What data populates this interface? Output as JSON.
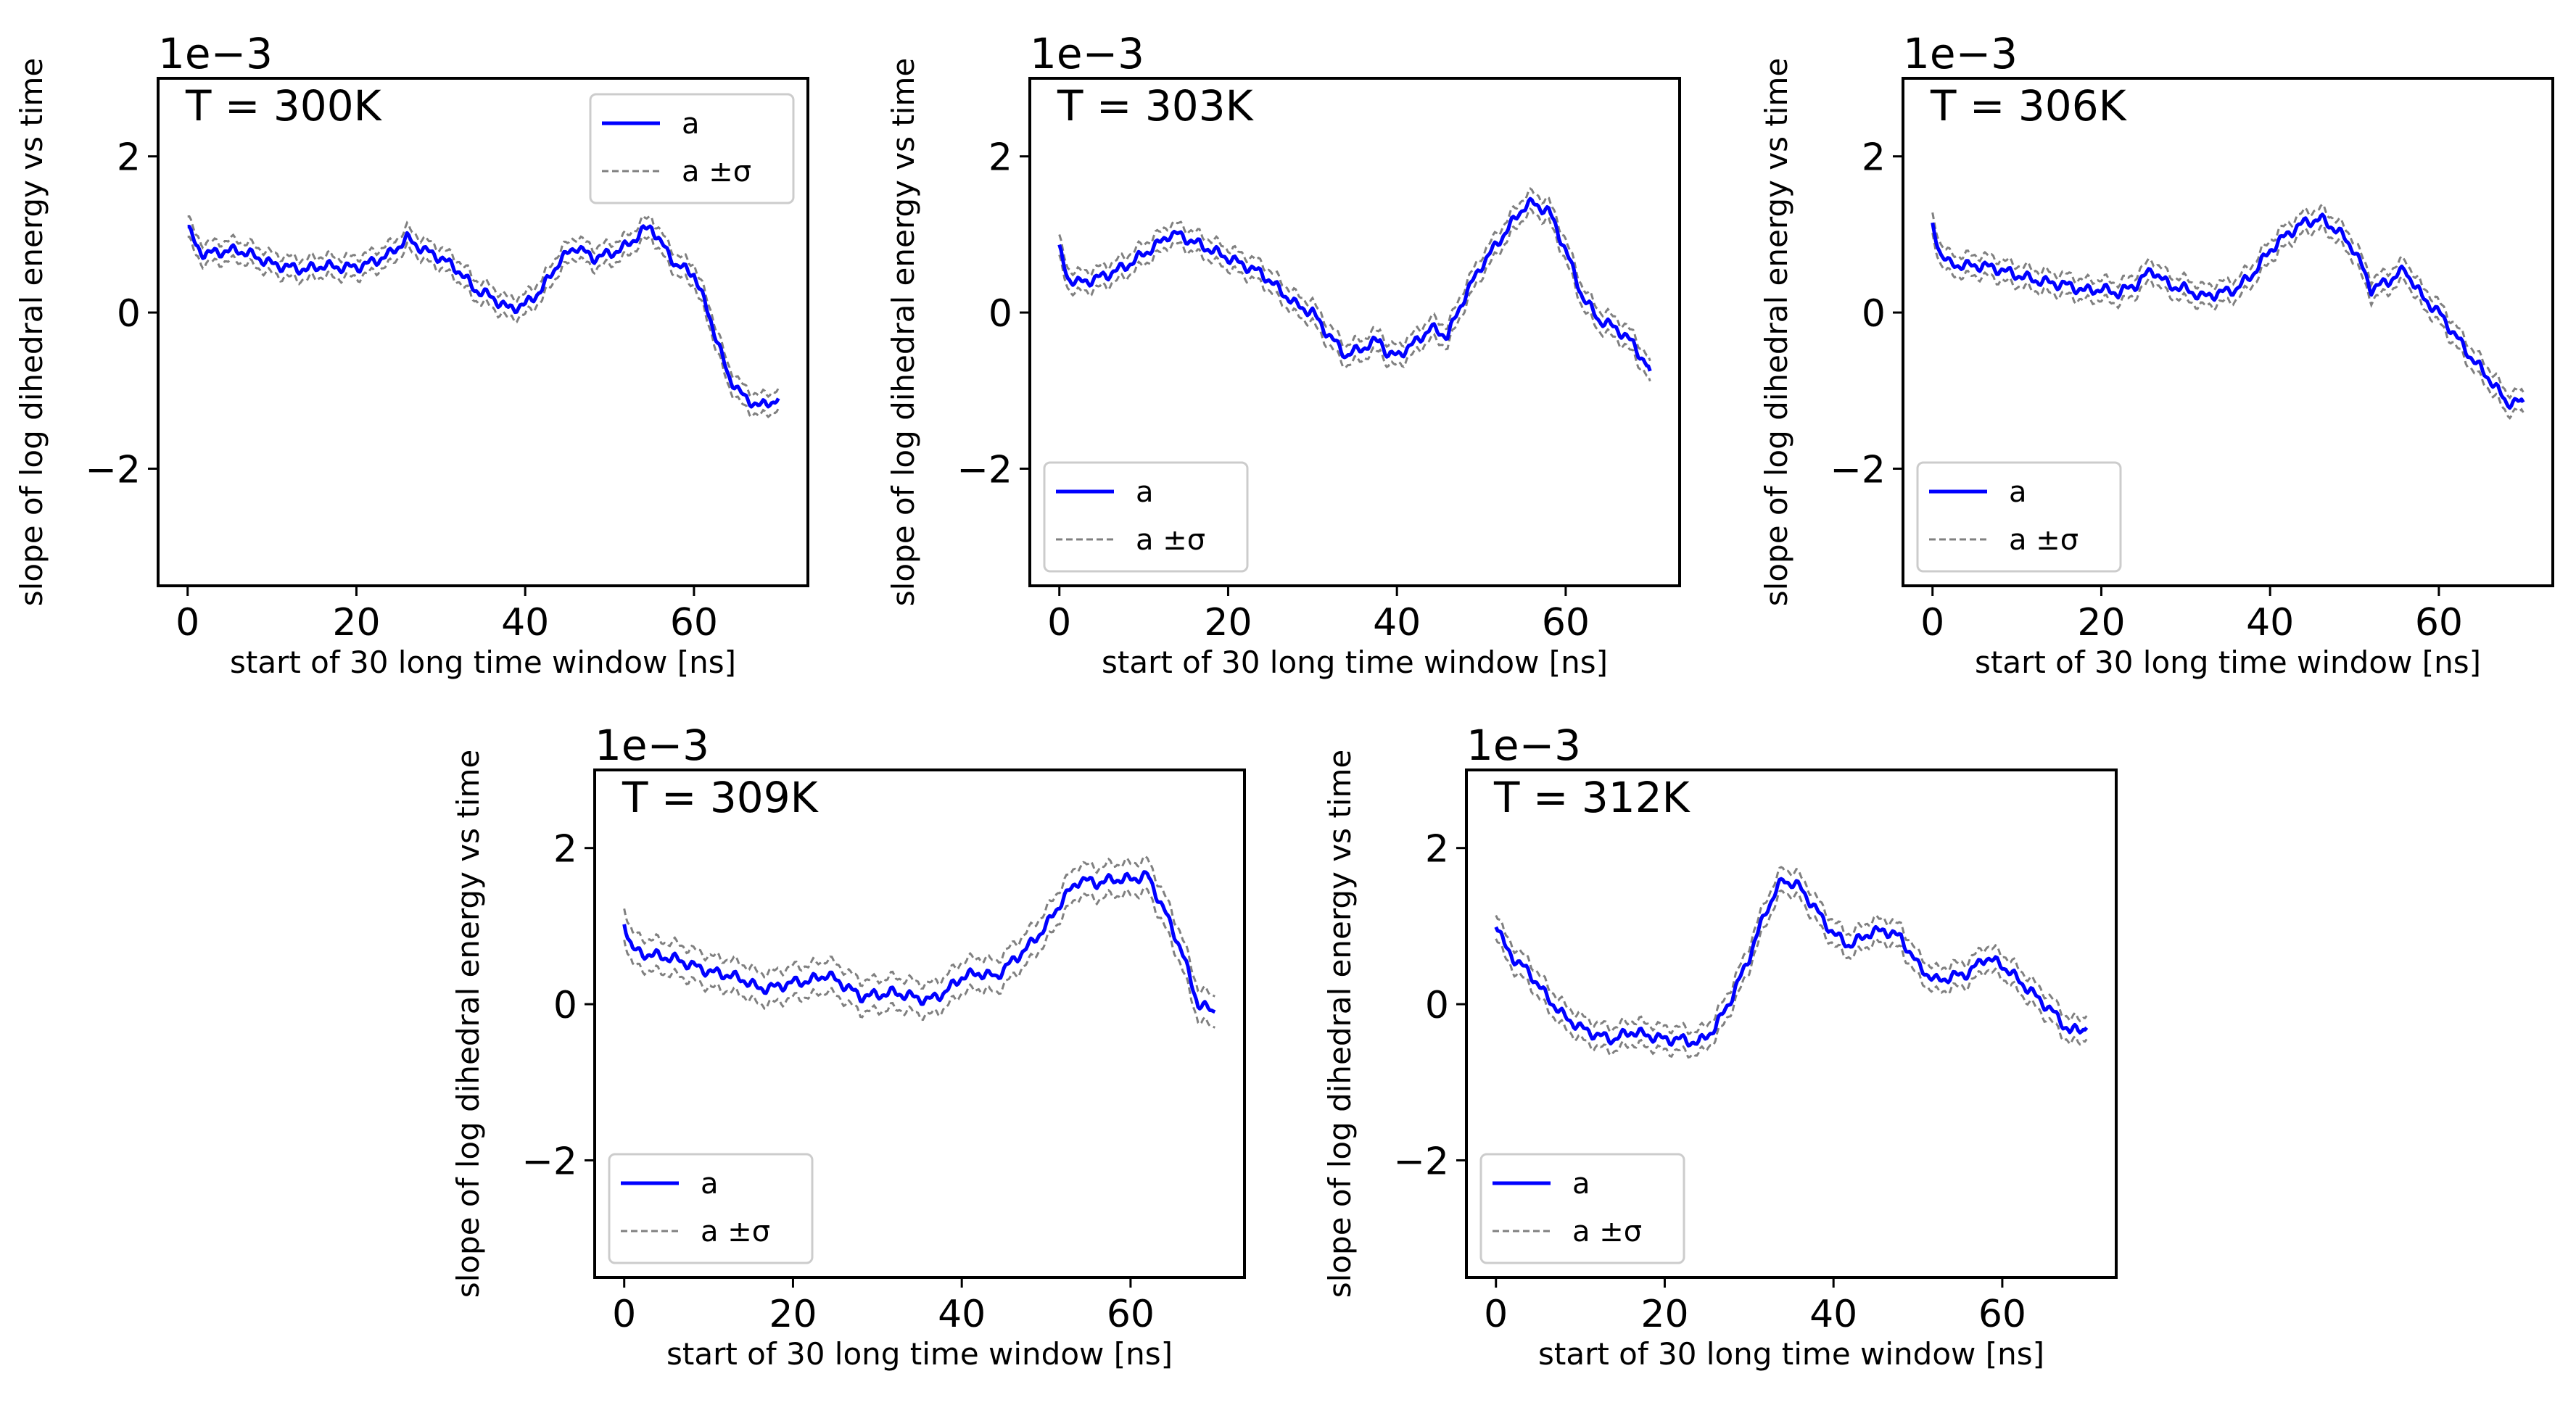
{
  "chart_data": [
    {
      "type": "line",
      "title": "T = 300K",
      "xlabel": "start of 30 long time window [ns]",
      "ylabel": "slope of log dihedral energy vs time",
      "y_scale_label": "1e−3",
      "xlim": [
        -3.5,
        73.5
      ],
      "ylim": [
        -3.5,
        3.0
      ],
      "xticks": [
        0,
        20,
        40,
        60
      ],
      "xtick_labels": [
        "0",
        "20",
        "40",
        "60"
      ],
      "yticks": [
        2,
        0,
        -2
      ],
      "ytick_labels": [
        "2",
        "0",
        "−2"
      ],
      "legend_position": "top-right",
      "series": [
        {
          "name": "a",
          "color": "#0000ff",
          "sigma": 0.13,
          "x": [
            0,
            1,
            2,
            4,
            6,
            8,
            10,
            12,
            14,
            16,
            18,
            20,
            22,
            24,
            26,
            28,
            30,
            32,
            34,
            36,
            38,
            40,
            42,
            44,
            46,
            48,
            50,
            52,
            54,
            55,
            56,
            58,
            60,
            62,
            64,
            66,
            68,
            70
          ],
          "values": [
            1.1,
            0.85,
            0.75,
            0.78,
            0.8,
            0.72,
            0.62,
            0.58,
            0.55,
            0.6,
            0.58,
            0.58,
            0.65,
            0.75,
            0.95,
            0.8,
            0.7,
            0.55,
            0.3,
            0.2,
            0.05,
            0.1,
            0.3,
            0.65,
            0.85,
            0.7,
            0.75,
            0.85,
            1.05,
            1.1,
            0.9,
            0.6,
            0.5,
            -0.1,
            -0.8,
            -1.1,
            -1.2,
            -1.1
          ]
        },
        {
          "name": "a ±σ",
          "color": "#808080",
          "dash": true
        }
      ]
    },
    {
      "type": "line",
      "title": "T = 303K",
      "xlabel": "start of 30 long time window [ns]",
      "ylabel": "slope of log dihedral energy vs time",
      "y_scale_label": "1e−3",
      "xlim": [
        -3.5,
        73.5
      ],
      "ylim": [
        -3.5,
        3.0
      ],
      "xticks": [
        0,
        20,
        40,
        60
      ],
      "xtick_labels": [
        "0",
        "20",
        "40",
        "60"
      ],
      "yticks": [
        2,
        0,
        -2
      ],
      "ytick_labels": [
        "2",
        "0",
        "−2"
      ],
      "legend_position": "lower-left",
      "series": [
        {
          "name": "a",
          "color": "#0000ff",
          "sigma": 0.13,
          "x": [
            0,
            1,
            2,
            4,
            6,
            8,
            10,
            12,
            13,
            14,
            16,
            18,
            20,
            22,
            24,
            26,
            28,
            30,
            32,
            34,
            36,
            38,
            39,
            40,
            42,
            44,
            46,
            48,
            50,
            52,
            54,
            55,
            56,
            58,
            60,
            62,
            64,
            66,
            68,
            70
          ],
          "values": [
            0.8,
            0.45,
            0.38,
            0.42,
            0.5,
            0.6,
            0.75,
            0.9,
            1.0,
            1.0,
            0.9,
            0.8,
            0.7,
            0.6,
            0.5,
            0.3,
            0.1,
            0.0,
            -0.3,
            -0.55,
            -0.45,
            -0.35,
            -0.55,
            -0.55,
            -0.4,
            -0.2,
            -0.3,
            0.2,
            0.6,
            0.9,
            1.2,
            1.35,
            1.4,
            1.3,
            0.8,
            0.2,
            -0.1,
            -0.2,
            -0.4,
            -0.75
          ]
        },
        {
          "name": "a ±σ",
          "color": "#808080",
          "dash": true
        }
      ]
    },
    {
      "type": "line",
      "title": "T = 306K",
      "xlabel": "start of 30 long time window [ns]",
      "ylabel": "slope of log dihedral energy vs time",
      "y_scale_label": "1e−3",
      "xlim": [
        -3.5,
        73.5
      ],
      "ylim": [
        -3.5,
        3.0
      ],
      "xticks": [
        0,
        20,
        40,
        60
      ],
      "xtick_labels": [
        "0",
        "20",
        "40",
        "60"
      ],
      "yticks": [
        2,
        0,
        -2
      ],
      "ytick_labels": [
        "2",
        "0",
        "−2"
      ],
      "legend_position": "lower-left",
      "series": [
        {
          "name": "a",
          "color": "#0000ff",
          "sigma": 0.13,
          "x": [
            0,
            1,
            2,
            4,
            6,
            8,
            10,
            12,
            14,
            16,
            18,
            20,
            22,
            24,
            26,
            28,
            30,
            32,
            34,
            36,
            38,
            40,
            42,
            44,
            46,
            48,
            50,
            52,
            54,
            56,
            58,
            60,
            62,
            64,
            66,
            68,
            70
          ],
          "values": [
            1.1,
            0.75,
            0.62,
            0.6,
            0.6,
            0.55,
            0.48,
            0.42,
            0.38,
            0.35,
            0.28,
            0.3,
            0.25,
            0.35,
            0.55,
            0.35,
            0.3,
            0.2,
            0.25,
            0.3,
            0.5,
            0.8,
            1.0,
            1.15,
            1.2,
            1.05,
            0.8,
            0.3,
            0.4,
            0.55,
            0.2,
            0.0,
            -0.3,
            -0.6,
            -0.85,
            -1.15,
            -1.15
          ]
        },
        {
          "name": "a ±σ",
          "color": "#808080",
          "dash": true
        }
      ]
    },
    {
      "type": "line",
      "title": "T = 309K",
      "xlabel": "start of 30 long time window [ns]",
      "ylabel": "slope of log dihedral energy vs time",
      "y_scale_label": "1e−3",
      "xlim": [
        -3.5,
        73.5
      ],
      "ylim": [
        -3.5,
        3.0
      ],
      "xticks": [
        0,
        20,
        40,
        60
      ],
      "xtick_labels": [
        "0",
        "20",
        "40",
        "60"
      ],
      "yticks": [
        2,
        0,
        -2
      ],
      "ytick_labels": [
        "2",
        "0",
        "−2"
      ],
      "legend_position": "lower-left",
      "series": [
        {
          "name": "a",
          "color": "#0000ff",
          "sigma": 0.2,
          "x": [
            0,
            1,
            2,
            4,
            6,
            8,
            10,
            12,
            14,
            16,
            18,
            20,
            22,
            24,
            26,
            28,
            30,
            32,
            34,
            36,
            38,
            40,
            42,
            44,
            46,
            48,
            50,
            52,
            54,
            56,
            58,
            60,
            62,
            64,
            66,
            68,
            70
          ],
          "values": [
            1.05,
            0.7,
            0.65,
            0.62,
            0.58,
            0.5,
            0.42,
            0.38,
            0.32,
            0.2,
            0.22,
            0.28,
            0.3,
            0.38,
            0.25,
            0.1,
            0.12,
            0.15,
            0.1,
            0.05,
            0.15,
            0.35,
            0.4,
            0.35,
            0.55,
            0.75,
            1.0,
            1.35,
            1.6,
            1.55,
            1.6,
            1.6,
            1.65,
            1.2,
            0.7,
            0.0,
            -0.1
          ]
        },
        {
          "name": "a ±σ",
          "color": "#808080",
          "dash": true
        }
      ]
    },
    {
      "type": "line",
      "title": "T = 312K",
      "xlabel": "start of 30 long time window [ns]",
      "ylabel": "slope of log dihedral energy vs time",
      "y_scale_label": "1e−3",
      "xlim": [
        -3.5,
        73.5
      ],
      "ylim": [
        -3.5,
        3.0
      ],
      "xticks": [
        0,
        20,
        40,
        60
      ],
      "xtick_labels": [
        "0",
        "20",
        "40",
        "60"
      ],
      "yticks": [
        2,
        0,
        -2
      ],
      "ytick_labels": [
        "2",
        "0",
        "−2"
      ],
      "legend_position": "lower-left",
      "series": [
        {
          "name": "a",
          "color": "#0000ff",
          "sigma": 0.15,
          "x": [
            0,
            1,
            2,
            4,
            6,
            8,
            10,
            12,
            14,
            16,
            18,
            20,
            22,
            24,
            26,
            28,
            30,
            32,
            34,
            36,
            38,
            40,
            42,
            44,
            46,
            48,
            50,
            52,
            54,
            56,
            58,
            60,
            62,
            64,
            66,
            68,
            70
          ],
          "values": [
            1.05,
            0.75,
            0.6,
            0.4,
            0.1,
            -0.15,
            -0.3,
            -0.4,
            -0.45,
            -0.35,
            -0.4,
            -0.45,
            -0.45,
            -0.5,
            -0.3,
            0.1,
            0.6,
            1.2,
            1.6,
            1.5,
            1.2,
            0.9,
            0.75,
            0.9,
            0.95,
            0.85,
            0.5,
            0.3,
            0.35,
            0.4,
            0.6,
            0.5,
            0.3,
            0.1,
            -0.1,
            -0.35,
            -0.3
          ]
        },
        {
          "name": "a ±σ",
          "color": "#808080",
          "dash": true
        }
      ]
    }
  ]
}
